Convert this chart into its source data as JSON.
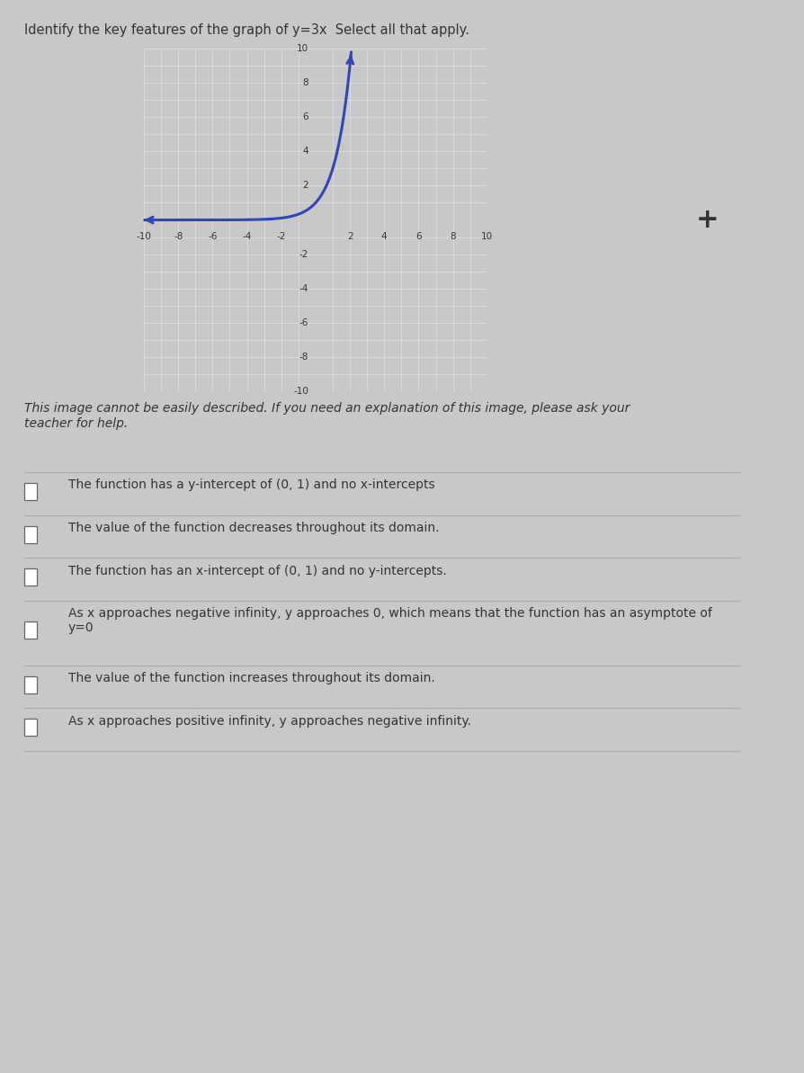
{
  "title_line1": "Identify the key features of the graph of y=3x  Select all that apply.",
  "title_fontsize": 10.5,
  "page_bg_color": "#c8c8c8",
  "graph_bg_color": "#d0d4d8",
  "grid_color": "#e8e8e8",
  "axis_color": "#333333",
  "curve_color": "#3344bb",
  "curve_linewidth": 2.2,
  "xmin": -10,
  "xmax": 10,
  "ymin": -10,
  "ymax": 10,
  "xtick_labels": [
    "-10",
    "-8",
    "-6",
    "-4",
    "-2",
    "2",
    "4",
    "6",
    "8",
    "10"
  ],
  "xtick_vals": [
    -10,
    -8,
    -6,
    -4,
    -2,
    2,
    4,
    6,
    8,
    10
  ],
  "ytick_labels": [
    "10",
    "8",
    "6",
    "4",
    "2",
    "-2",
    "-4",
    "-6",
    "-8",
    "-10"
  ],
  "ytick_vals": [
    10,
    8,
    6,
    4,
    2,
    -2,
    -4,
    -6,
    -8,
    -10
  ],
  "italic_text": "This image cannot be easily described. If you need an explanation of this image, please ask your\nteacher for help.",
  "italic_fontsize": 10,
  "plus_fontsize": 22,
  "checkbox_fontsize": 10,
  "sep_color": "#aaaaaa",
  "checkbox_options": [
    "The function has a y-intercept of (0, 1) and no x-intercepts",
    "The value of the function decreases throughout its domain.",
    "The function has an x-intercept of (0, 1) and no y-intercepts.",
    "As x approaches negative infinity, y approaches 0, which means that the function has an asymptote of\ny=0",
    "The value of the function increases throughout its domain.",
    "As x approaches positive infinity, y approaches negative infinity."
  ]
}
